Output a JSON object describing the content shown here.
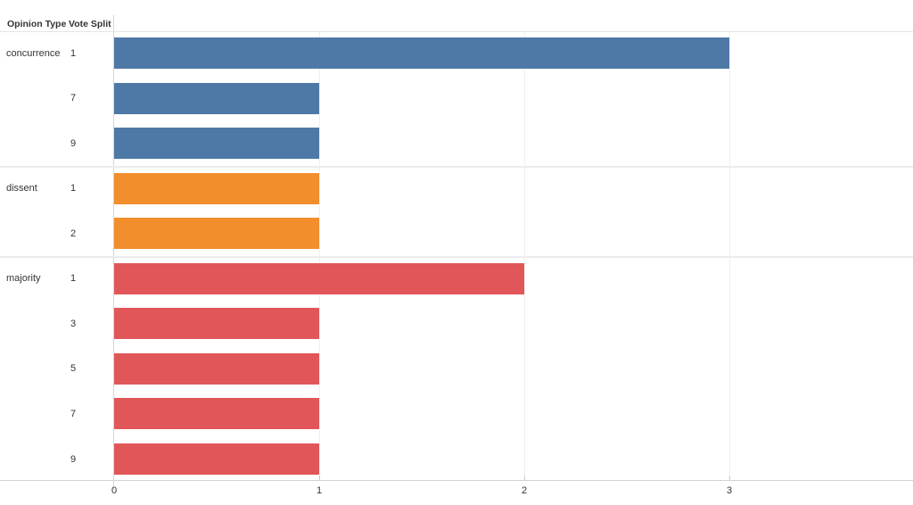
{
  "chart_data": {
    "type": "bar",
    "orientation": "horizontal",
    "title": "",
    "xlabel": "",
    "ylabel": "",
    "columns": [
      "Opinion Type",
      "Vote Split"
    ],
    "groups": [
      {
        "opinion_type": "concurrence",
        "color": "#4e79a7",
        "bars": [
          {
            "vote_split": "1",
            "value": 3
          },
          {
            "vote_split": "7",
            "value": 1
          },
          {
            "vote_split": "9",
            "value": 1
          }
        ]
      },
      {
        "opinion_type": "dissent",
        "color": "#f28e2b",
        "bars": [
          {
            "vote_split": "1",
            "value": 1
          },
          {
            "vote_split": "2",
            "value": 1
          }
        ]
      },
      {
        "opinion_type": "majority",
        "color": "#e15759",
        "bars": [
          {
            "vote_split": "1",
            "value": 2
          },
          {
            "vote_split": "3",
            "value": 1
          },
          {
            "vote_split": "5",
            "value": 1
          },
          {
            "vote_split": "7",
            "value": 1
          },
          {
            "vote_split": "9",
            "value": 1
          }
        ]
      }
    ],
    "x_axis": {
      "tick_labels": [
        "0",
        "1",
        "2",
        "3"
      ],
      "tick_values": [
        0,
        1,
        2,
        3
      ],
      "min": 0,
      "max": 3.9,
      "grid": true
    },
    "style": {
      "gridline_color": "#f0f0f0",
      "divider_color": "#ececec",
      "axis_line_color": "#d2d2d2",
      "text_color": "#333333"
    }
  }
}
